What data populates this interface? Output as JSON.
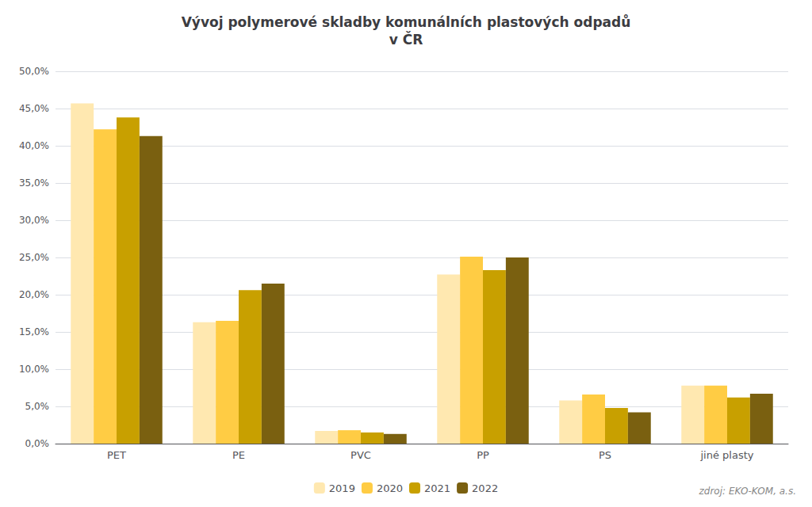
{
  "chart_data": {
    "type": "bar",
    "title": "Vývoj polymerové skladby komunálních plastových odpadů\nv ČR",
    "categories": [
      "PET",
      "PE",
      "PVC",
      "PP",
      "PS",
      "jiné plasty"
    ],
    "series": [
      {
        "name": "2019",
        "color": "#FFE8B0",
        "values": [
          0.457,
          0.163,
          0.017,
          0.227,
          0.058,
          0.078
        ]
      },
      {
        "name": "2020",
        "color": "#FFCC44",
        "values": [
          0.422,
          0.165,
          0.018,
          0.251,
          0.066,
          0.078
        ]
      },
      {
        "name": "2021",
        "color": "#C8A000",
        "values": [
          0.438,
          0.206,
          0.015,
          0.233,
          0.048,
          0.062
        ]
      },
      {
        "name": "2022",
        "color": "#7A6010",
        "values": [
          0.413,
          0.215,
          0.013,
          0.25,
          0.042,
          0.067
        ]
      }
    ],
    "ylim": [
      0,
      0.5
    ],
    "yticks": [
      {
        "value": 0.0,
        "label": "0,0%"
      },
      {
        "value": 0.05,
        "label": "5,0%"
      },
      {
        "value": 0.1,
        "label": "10,0%"
      },
      {
        "value": 0.15,
        "label": "15,0%"
      },
      {
        "value": 0.2,
        "label": "20,0%"
      },
      {
        "value": 0.25,
        "label": "25,0%"
      },
      {
        "value": 0.3,
        "label": "30,0%"
      },
      {
        "value": 0.35,
        "label": "35,0%"
      },
      {
        "value": 0.4,
        "label": "40,0%"
      },
      {
        "value": 0.45,
        "label": "45,0%"
      },
      {
        "value": 0.5,
        "label": "50,0%"
      }
    ],
    "grid": true,
    "legend": "bottom",
    "annotations": [
      "zdroj: EKO-KOM, a.s."
    ]
  }
}
